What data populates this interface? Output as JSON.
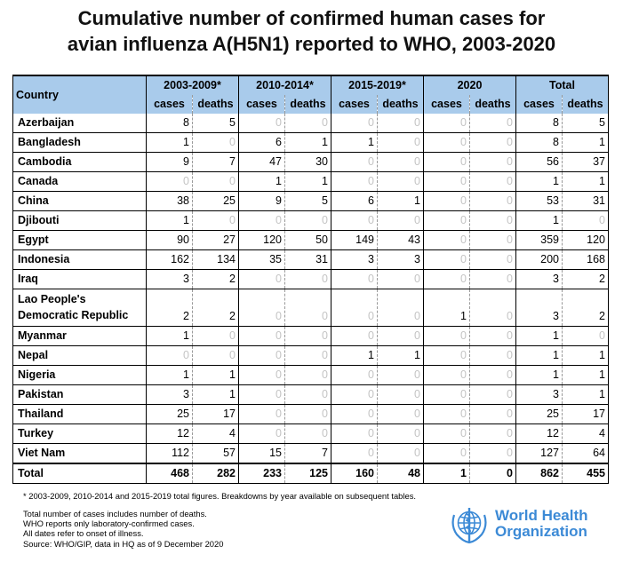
{
  "title_line1": "Cumulative number of confirmed human cases for",
  "title_line2": "avian influenza A(H5N1) reported to WHO, 2003-2020",
  "table": {
    "country_header": "Country",
    "periods": [
      "2003-2009*",
      "2010-2014*",
      "2015-2019*",
      "2020",
      "Total"
    ],
    "sub_cases": "cases",
    "sub_deaths": "deaths",
    "rows": [
      {
        "country": "Azerbaijan",
        "values": [
          "8",
          "5",
          "0",
          "0",
          "0",
          "0",
          "0",
          "0",
          "8",
          "5"
        ]
      },
      {
        "country": "Bangladesh",
        "values": [
          "1",
          "0",
          "6",
          "1",
          "1",
          "0",
          "0",
          "0",
          "8",
          "1"
        ]
      },
      {
        "country": "Cambodia",
        "values": [
          "9",
          "7",
          "47",
          "30",
          "0",
          "0",
          "0",
          "0",
          "56",
          "37"
        ]
      },
      {
        "country": "Canada",
        "values": [
          "0",
          "0",
          "1",
          "1",
          "0",
          "0",
          "0",
          "0",
          "1",
          "1"
        ]
      },
      {
        "country": "China",
        "values": [
          "38",
          "25",
          "9",
          "5",
          "6",
          "1",
          "0",
          "0",
          "53",
          "31"
        ]
      },
      {
        "country": "Djibouti",
        "values": [
          "1",
          "0",
          "0",
          "0",
          "0",
          "0",
          "0",
          "0",
          "1",
          "0"
        ]
      },
      {
        "country": "Egypt",
        "values": [
          "90",
          "27",
          "120",
          "50",
          "149",
          "43",
          "0",
          "0",
          "359",
          "120"
        ]
      },
      {
        "country": "Indonesia",
        "values": [
          "162",
          "134",
          "35",
          "31",
          "3",
          "3",
          "0",
          "0",
          "200",
          "168"
        ]
      },
      {
        "country": "Iraq",
        "values": [
          "3",
          "2",
          "0",
          "0",
          "0",
          "0",
          "0",
          "0",
          "3",
          "2"
        ]
      },
      {
        "country_line1": "Lao People's",
        "country_line2": "Democratic Republic",
        "values": [
          "2",
          "2",
          "0",
          "0",
          "0",
          "0",
          "1",
          "0",
          "3",
          "2"
        ]
      },
      {
        "country": "Myanmar",
        "values": [
          "1",
          "0",
          "0",
          "0",
          "0",
          "0",
          "0",
          "0",
          "1",
          "0"
        ]
      },
      {
        "country": "Nepal",
        "values": [
          "0",
          "0",
          "0",
          "0",
          "1",
          "1",
          "0",
          "0",
          "1",
          "1"
        ]
      },
      {
        "country": "Nigeria",
        "values": [
          "1",
          "1",
          "0",
          "0",
          "0",
          "0",
          "0",
          "0",
          "1",
          "1"
        ]
      },
      {
        "country": "Pakistan",
        "values": [
          "3",
          "1",
          "0",
          "0",
          "0",
          "0",
          "0",
          "0",
          "3",
          "1"
        ]
      },
      {
        "country": "Thailand",
        "values": [
          "25",
          "17",
          "0",
          "0",
          "0",
          "0",
          "0",
          "0",
          "25",
          "17"
        ]
      },
      {
        "country": "Turkey",
        "values": [
          "12",
          "4",
          "0",
          "0",
          "0",
          "0",
          "0",
          "0",
          "12",
          "4"
        ]
      },
      {
        "country": "Viet Nam",
        "values": [
          "112",
          "57",
          "15",
          "7",
          "0",
          "0",
          "0",
          "0",
          "127",
          "64"
        ]
      }
    ],
    "total": {
      "label": "Total",
      "values": [
        "468",
        "282",
        "233",
        "125",
        "160",
        "48",
        "1",
        "0",
        "862",
        "455"
      ]
    }
  },
  "footnote": "* 2003-2009, 2010-2014 and 2015-2019 total figures. Breakdowns by year available on subsequent tables.",
  "notes": [
    "Total number of cases includes number of deaths.",
    "WHO reports only laboratory-confirmed cases.",
    "All dates refer to onset of illness.",
    "Source: WHO/GIP, data in HQ as of 9 December 2020"
  ],
  "logo": {
    "line1": "World Health",
    "line2": "Organization",
    "color": "#3c8ad6"
  },
  "colors": {
    "header_bg": "#a9cbeb",
    "zero_text": "#c4c4c4"
  }
}
